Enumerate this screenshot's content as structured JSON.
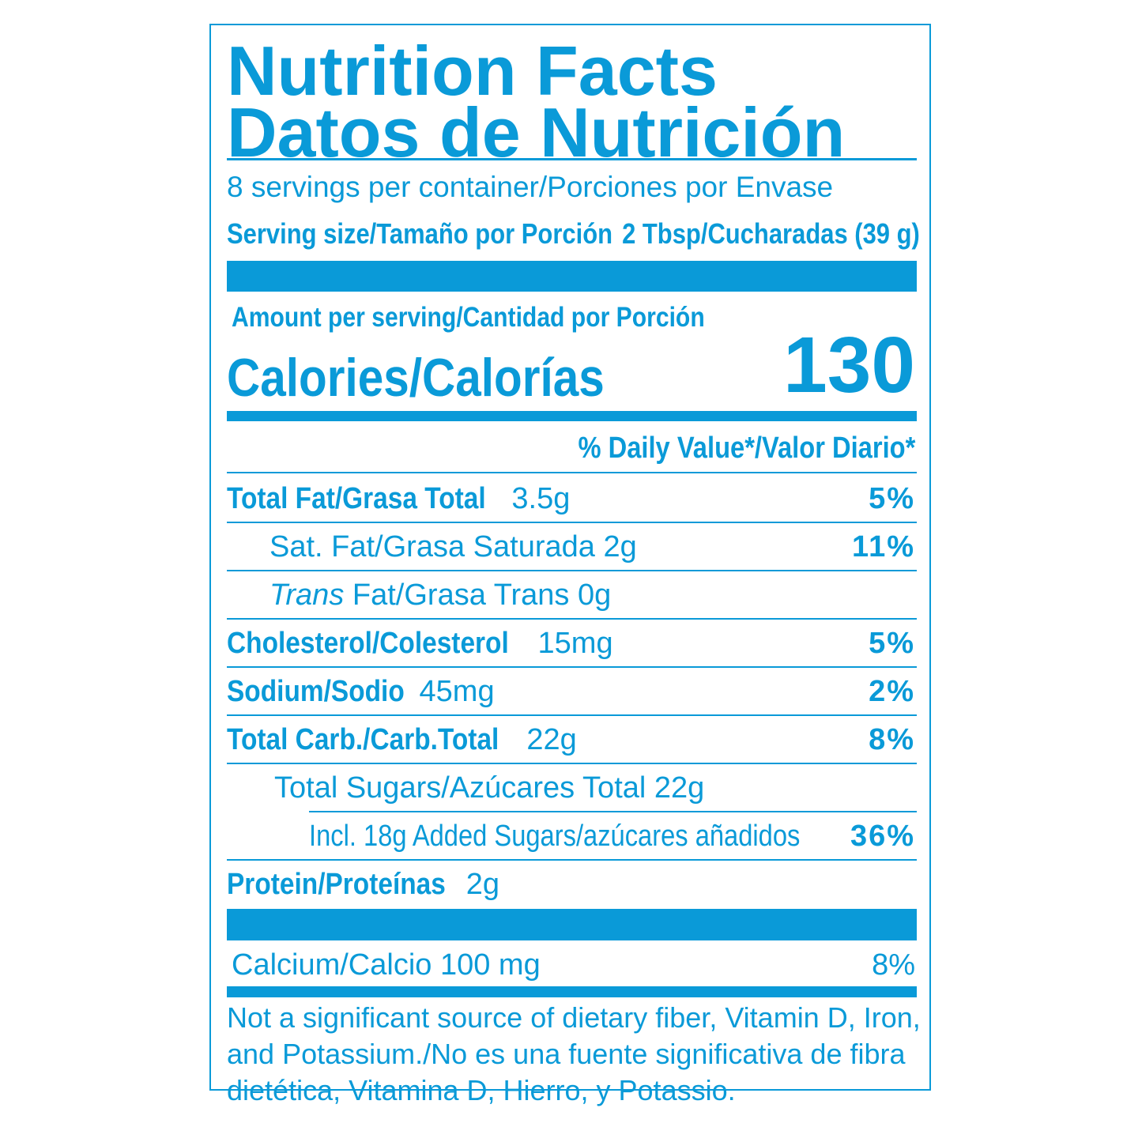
{
  "title": [
    "Nutrition Facts",
    "Datos de Nutrición"
  ],
  "servings": "8 servings per container/Porciones por Envase",
  "serving_size": {
    "label": "Serving size/Tamaño por Porción",
    "value": "2 Tbsp/Cucharadas (39 g)"
  },
  "amount_per_serving": "Amount per serving/Cantidad por Porción",
  "calories": {
    "label": "Calories/Calorías",
    "value": 130
  },
  "daily_value_header": "% Daily Value*/Valor Diario*",
  "rows": [
    {
      "name": "Total Fat/Grasa Total",
      "amount": "3.5g",
      "dv": "5%"
    },
    {
      "name": "Sat. Fat/Grasa Saturada",
      "amount": "2g",
      "dv": "11%"
    },
    {
      "name_italic": "Trans",
      "name": "Fat/Grasa Trans",
      "amount": "0g"
    },
    {
      "name": "Cholesterol/Colesterol",
      "amount": "15mg",
      "dv": "5%"
    },
    {
      "name": "Sodium/Sodio",
      "amount": "45mg",
      "dv": "2%"
    },
    {
      "name": "Total Carb./Carb.Total",
      "amount": "22g",
      "dv": "8%"
    },
    {
      "name": "Total Sugars/Azúcares Total",
      "amount": "22g"
    },
    {
      "name": "Incl. 18g Added Sugars/azúcares añadidos",
      "dv": "36%"
    },
    {
      "name": "Protein/Proteínas",
      "amount": "2g"
    }
  ],
  "calcium": {
    "name": "Calcium/Calcio",
    "amount": "100 mg",
    "dv": "8%"
  },
  "footnote": [
    "Not a significant source of dietary fiber, Vitamin D, Iron,",
    "and Potassium./No es una fuente significativa de fibra",
    "dietética, Vitamina D, Hierro, y Potassio."
  ]
}
